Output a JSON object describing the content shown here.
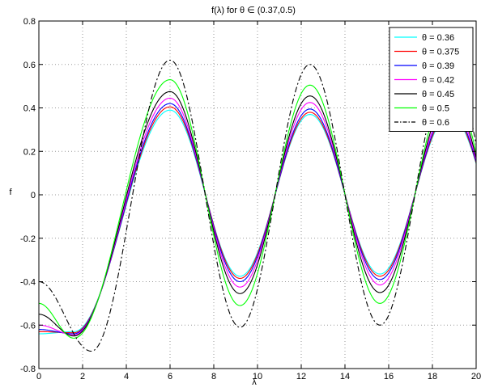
{
  "chart_data": {
    "type": "line",
    "title": "f(λ) for θ ∈ (0.37,0.5)",
    "xlabel": "λ",
    "ylabel": "f",
    "xlim": [
      0,
      20
    ],
    "ylim": [
      -0.8,
      0.8
    ],
    "xticks": [
      0,
      2,
      4,
      6,
      8,
      10,
      12,
      14,
      16,
      18,
      20
    ],
    "yticks": [
      -0.8,
      -0.6,
      -0.4,
      -0.2,
      0,
      0.2,
      0.4,
      0.6,
      0.8
    ],
    "grid": true,
    "legend_position": "top-right",
    "series": [
      {
        "name": "θ = 0.36",
        "color": "#00ffff",
        "dash": "solid",
        "x": [
          0,
          1.6,
          6.0,
          9.2,
          12.4,
          15.6,
          18.8
        ],
        "y": [
          -0.64,
          -0.63,
          0.39,
          -0.375,
          0.37,
          -0.365,
          0.37
        ]
      },
      {
        "name": "θ = 0.375",
        "color": "#ff0000",
        "dash": "solid",
        "x": [
          0,
          1.6,
          6.0,
          9.2,
          12.4,
          15.6,
          18.8
        ],
        "y": [
          -0.63,
          -0.635,
          0.405,
          -0.385,
          0.38,
          -0.375,
          0.38
        ]
      },
      {
        "name": "θ = 0.39",
        "color": "#0000ff",
        "dash": "solid",
        "x": [
          0,
          1.6,
          6.0,
          9.2,
          12.4,
          15.6,
          18.8
        ],
        "y": [
          -0.62,
          -0.64,
          0.42,
          -0.4,
          0.395,
          -0.39,
          0.395
        ]
      },
      {
        "name": "θ = 0.42",
        "color": "#ff00ff",
        "dash": "solid",
        "x": [
          0,
          1.6,
          6.0,
          9.2,
          12.4,
          15.6,
          18.8
        ],
        "y": [
          -0.6,
          -0.645,
          0.445,
          -0.425,
          0.425,
          -0.415,
          0.42
        ]
      },
      {
        "name": "θ = 0.45",
        "color": "#000000",
        "dash": "solid",
        "x": [
          0,
          1.6,
          6.0,
          9.2,
          12.4,
          15.6,
          18.8
        ],
        "y": [
          -0.55,
          -0.65,
          0.475,
          -0.455,
          0.455,
          -0.45,
          0.45
        ]
      },
      {
        "name": "θ = 0.5",
        "color": "#00ff00",
        "dash": "solid",
        "x": [
          0,
          1.6,
          6.0,
          9.2,
          12.4,
          15.6,
          18.8
        ],
        "y": [
          -0.5,
          -0.66,
          0.53,
          -0.51,
          0.505,
          -0.5,
          0.5
        ]
      },
      {
        "name": "θ = 0.6",
        "color": "#000000",
        "dash": "dashdot",
        "x": [
          0,
          2.4,
          6.0,
          9.2,
          12.4,
          15.6,
          18.8
        ],
        "y": [
          -0.4,
          -0.72,
          0.62,
          -0.61,
          0.6,
          -0.6,
          0.6
        ]
      }
    ]
  }
}
